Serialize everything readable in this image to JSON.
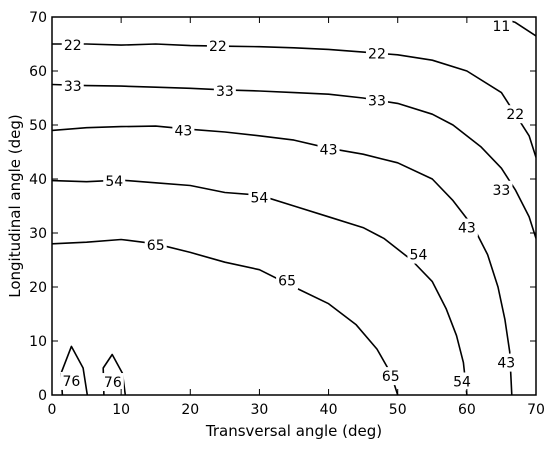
{
  "chart_data": {
    "type": "contour",
    "title": "",
    "xlabel": "Transversal angle (deg)",
    "ylabel": "Longitudinal angle (deg)",
    "xlim": [
      0,
      70
    ],
    "ylim": [
      0,
      70
    ],
    "xticks": [
      "0",
      "10",
      "20",
      "30",
      "40",
      "50",
      "60",
      "70"
    ],
    "yticks": [
      "0",
      "10",
      "20",
      "30",
      "40",
      "50",
      "60",
      "70"
    ],
    "grid": false,
    "series": [
      {
        "level": "11",
        "points": [
          [
            62,
            71
          ],
          [
            67,
            69
          ],
          [
            70,
            66.5
          ]
        ],
        "labels": [
          {
            "text": "11",
            "x": 65,
            "y": 68.3
          }
        ]
      },
      {
        "level": "22",
        "points": [
          [
            0,
            65
          ],
          [
            5,
            65
          ],
          [
            10,
            64.8
          ],
          [
            15,
            65
          ],
          [
            20,
            64.7
          ],
          [
            25,
            64.6
          ],
          [
            30,
            64.5
          ],
          [
            35,
            64.3
          ],
          [
            40,
            64
          ],
          [
            45,
            63.5
          ],
          [
            50,
            63
          ],
          [
            55,
            62
          ],
          [
            60,
            60
          ],
          [
            65,
            56
          ],
          [
            67,
            52
          ],
          [
            69,
            48
          ],
          [
            70,
            44
          ]
        ],
        "labels": [
          {
            "text": "22",
            "x": 3,
            "y": 64.8
          },
          {
            "text": "22",
            "x": 24,
            "y": 64.6
          },
          {
            "text": "22",
            "x": 47,
            "y": 63.2
          },
          {
            "text": "22",
            "x": 67,
            "y": 52
          }
        ]
      },
      {
        "level": "33",
        "points": [
          [
            0,
            57.5
          ],
          [
            5,
            57.3
          ],
          [
            10,
            57.2
          ],
          [
            15,
            57
          ],
          [
            20,
            56.8
          ],
          [
            25,
            56.5
          ],
          [
            30,
            56.3
          ],
          [
            35,
            56
          ],
          [
            40,
            55.7
          ],
          [
            45,
            55
          ],
          [
            50,
            54
          ],
          [
            55,
            52
          ],
          [
            58,
            50
          ],
          [
            62,
            46
          ],
          [
            65,
            42
          ],
          [
            67,
            38
          ],
          [
            69,
            33
          ],
          [
            70,
            29
          ]
        ],
        "labels": [
          {
            "text": "33",
            "x": 3,
            "y": 57.2
          },
          {
            "text": "33",
            "x": 25,
            "y": 56.3
          },
          {
            "text": "33",
            "x": 47,
            "y": 54.5
          },
          {
            "text": "33",
            "x": 65,
            "y": 38
          }
        ]
      },
      {
        "level": "43",
        "points": [
          [
            0,
            49
          ],
          [
            5,
            49.5
          ],
          [
            10,
            49.7
          ],
          [
            15,
            49.8
          ],
          [
            20,
            49.2
          ],
          [
            25,
            48.7
          ],
          [
            30,
            48
          ],
          [
            35,
            47.2
          ],
          [
            40,
            45.7
          ],
          [
            45,
            44.6
          ],
          [
            50,
            43
          ],
          [
            55,
            40
          ],
          [
            58,
            36
          ],
          [
            61,
            31
          ],
          [
            63,
            26
          ],
          [
            64.5,
            20
          ],
          [
            65.5,
            14
          ],
          [
            66.2,
            8
          ],
          [
            66.5,
            0
          ]
        ],
        "labels": [
          {
            "text": "43",
            "x": 19,
            "y": 49
          },
          {
            "text": "43",
            "x": 40,
            "y": 45.5
          },
          {
            "text": "43",
            "x": 60,
            "y": 31
          },
          {
            "text": "43",
            "x": 65.7,
            "y": 6
          }
        ]
      },
      {
        "level": "54",
        "points": [
          [
            0,
            39.7
          ],
          [
            5,
            39.5
          ],
          [
            10,
            39.8
          ],
          [
            15,
            39.3
          ],
          [
            20,
            38.8
          ],
          [
            25,
            37.5
          ],
          [
            30,
            37
          ],
          [
            35,
            35
          ],
          [
            40,
            33
          ],
          [
            45,
            31
          ],
          [
            48,
            29
          ],
          [
            52,
            25
          ],
          [
            55,
            21
          ],
          [
            57,
            16
          ],
          [
            58.5,
            11
          ],
          [
            59.5,
            6
          ],
          [
            60,
            0
          ]
        ],
        "labels": [
          {
            "text": "54",
            "x": 9,
            "y": 39.6
          },
          {
            "text": "54",
            "x": 30,
            "y": 36.6
          },
          {
            "text": "54",
            "x": 53,
            "y": 26
          },
          {
            "text": "54",
            "x": 59.3,
            "y": 2.5
          }
        ]
      },
      {
        "level": "65",
        "points": [
          [
            0,
            28
          ],
          [
            5,
            28.3
          ],
          [
            10,
            28.8
          ],
          [
            15,
            28
          ],
          [
            20,
            26.4
          ],
          [
            25,
            24.6
          ],
          [
            30,
            23.2
          ],
          [
            35,
            20
          ],
          [
            40,
            16.9
          ],
          [
            44,
            13
          ],
          [
            47,
            8.5
          ],
          [
            49,
            4
          ],
          [
            50,
            0
          ]
        ],
        "labels": [
          {
            "text": "65",
            "x": 15,
            "y": 27.8
          },
          {
            "text": "65",
            "x": 34,
            "y": 21.2
          },
          {
            "text": "65",
            "x": 49,
            "y": 3.5
          }
        ]
      },
      {
        "level": "76",
        "points": [
          [
            1.5,
            0
          ],
          [
            1.3,
            4
          ],
          [
            2.8,
            9
          ],
          [
            4.5,
            5
          ],
          [
            5.1,
            0
          ]
        ],
        "labels": [
          {
            "text": "76",
            "x": 2.8,
            "y": 2.6
          }
        ]
      },
      {
        "level": "76",
        "points": [
          [
            7.5,
            0
          ],
          [
            7.4,
            5
          ],
          [
            8.7,
            7.5
          ],
          [
            10.2,
            4
          ],
          [
            10.6,
            0
          ]
        ],
        "labels": [
          {
            "text": "76",
            "x": 8.8,
            "y": 2.4
          }
        ]
      }
    ]
  }
}
